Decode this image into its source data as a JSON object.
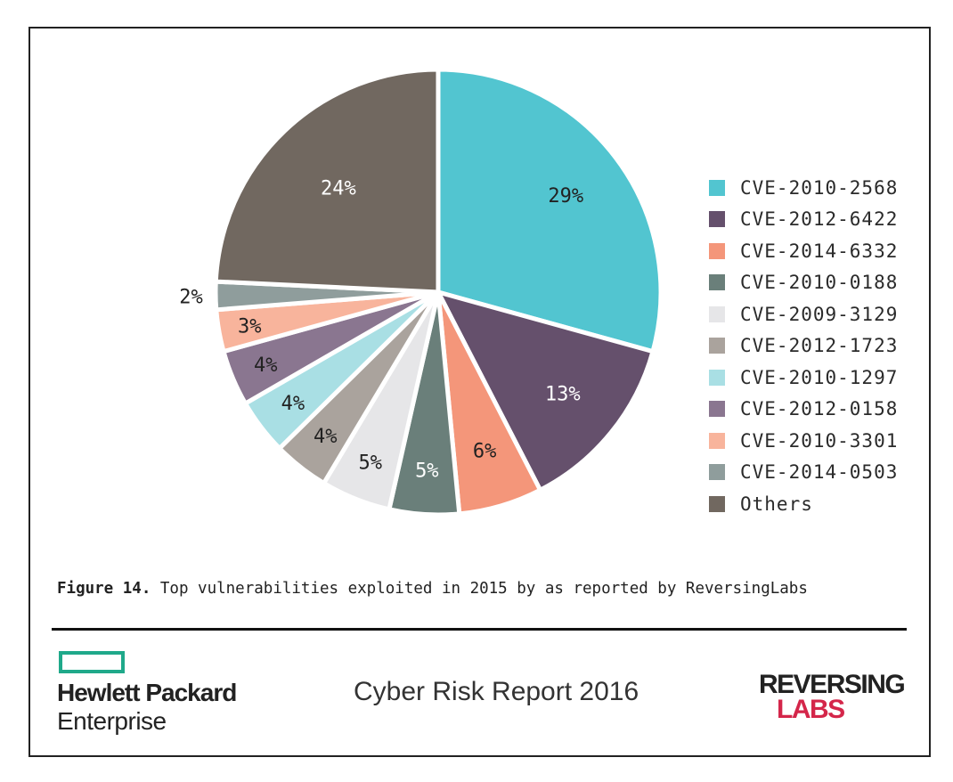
{
  "chart_data": {
    "type": "pie",
    "title": "",
    "slices": [
      {
        "label": "CVE-2010-2568",
        "value": 29,
        "display": "29%",
        "color": "#52c5d0"
      },
      {
        "label": "CVE-2012-6422",
        "value": 13,
        "display": "13%",
        "color": "#65506c"
      },
      {
        "label": "CVE-2014-6332",
        "value": 6,
        "display": "6%",
        "color": "#f4967a"
      },
      {
        "label": "CVE-2010-0188",
        "value": 5,
        "display": "5%",
        "color": "#6a7f7a"
      },
      {
        "label": "CVE-2009-3129",
        "value": 5,
        "display": "5%",
        "color": "#e6e6e8"
      },
      {
        "label": "CVE-2012-1723",
        "value": 4,
        "display": "4%",
        "color": "#aaa39d"
      },
      {
        "label": "CVE-2010-1297",
        "value": 4,
        "display": "4%",
        "color": "#a9dfe4"
      },
      {
        "label": "CVE-2012-0158",
        "value": 4,
        "display": "4%",
        "color": "#8a7690"
      },
      {
        "label": "CVE-2010-3301",
        "value": 3,
        "display": "3%",
        "color": "#f8b49c"
      },
      {
        "label": "CVE-2014-0503",
        "value": 2,
        "display": "2%",
        "color": "#8f9d9c"
      },
      {
        "label": "Others",
        "value": 24,
        "display": "24%",
        "color": "#716860"
      }
    ],
    "legend_position": "right"
  },
  "caption": {
    "prefix": "Figure 14.",
    "text": " Top vulnerabilities exploited in 2015 by as reported by ReversingLabs"
  },
  "footer": {
    "hpe_line1": "Hewlett Packard",
    "hpe_line2": "Enterprise",
    "report_title": "Cyber Risk Report 2016",
    "rl_line1": "REVERSING",
    "rl_line2": "LABS",
    "hpe_color": "#1fa98a",
    "rl_color": "#d4264a"
  }
}
